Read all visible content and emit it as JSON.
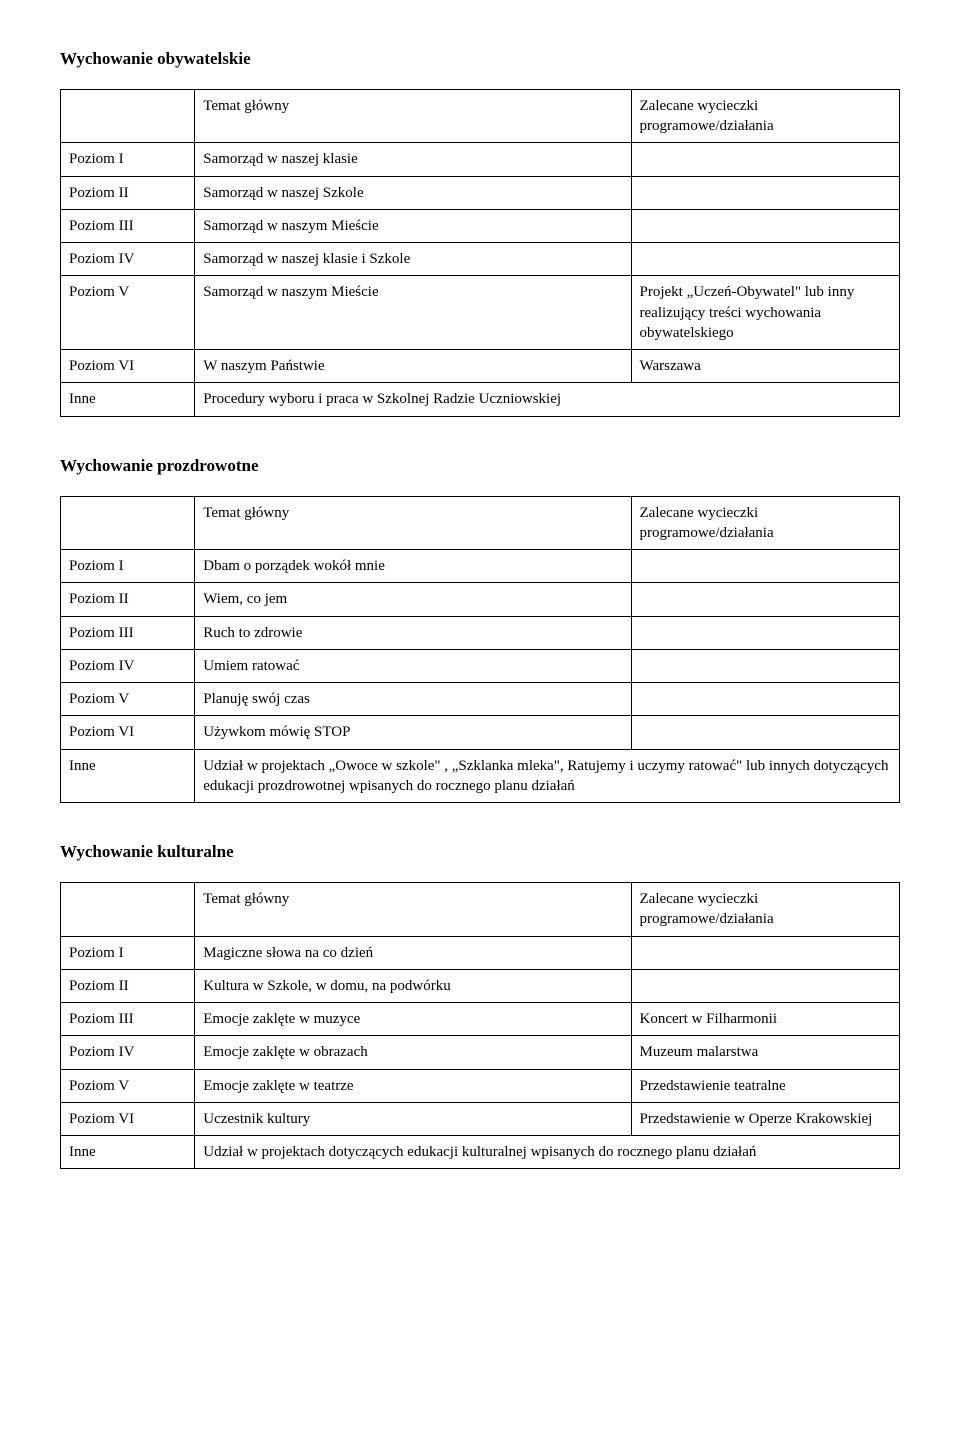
{
  "sections": [
    {
      "title": "Wychowanie obywatelskie",
      "header": {
        "col2": "Temat główny",
        "col3": "Zalecane wycieczki programowe/działania"
      },
      "rows": [
        {
          "c1": "Poziom I",
          "c2": "Samorząd w naszej klasie",
          "c3": ""
        },
        {
          "c1": "Poziom II",
          "c2": "Samorząd w naszej Szkole",
          "c3": ""
        },
        {
          "c1": "Poziom III",
          "c2": "Samorząd w naszym Mieście",
          "c3": ""
        },
        {
          "c1": "Poziom IV",
          "c2": "Samorząd w naszej klasie i Szkole",
          "c3": ""
        },
        {
          "c1": "Poziom V",
          "c2": "Samorząd w naszym Mieście",
          "c3": "Projekt „Uczeń-Obywatel\" lub inny realizujący treści wychowania obywatelskiego"
        },
        {
          "c1": "Poziom VI",
          "c2": "W naszym Państwie",
          "c3": "Warszawa"
        }
      ],
      "inne_label": "Inne",
      "inne_text": "Procedury wyboru i praca w Szkolnej Radzie Uczniowskiej"
    },
    {
      "title": "Wychowanie prozdrowotne",
      "header": {
        "col2": "Temat główny",
        "col3": "Zalecane wycieczki programowe/działania"
      },
      "rows": [
        {
          "c1": "Poziom I",
          "c2": "Dbam o porządek wokół mnie",
          "c3": ""
        },
        {
          "c1": "Poziom II",
          "c2": "Wiem, co jem",
          "c3": ""
        },
        {
          "c1": "Poziom III",
          "c2": "Ruch to zdrowie",
          "c3": ""
        },
        {
          "c1": "Poziom IV",
          "c2": "Umiem ratować",
          "c3": ""
        },
        {
          "c1": "Poziom V",
          "c2": "Planuję swój czas",
          "c3": ""
        },
        {
          "c1": "Poziom VI",
          "c2": "Używkom mówię STOP",
          "c3": ""
        }
      ],
      "inne_label": "Inne",
      "inne_text": "Udział w projektach „Owoce w szkole\" , „Szklanka mleka\", Ratujemy i uczymy ratować\" lub innych dotyczących edukacji prozdrowotnej wpisanych do rocznego planu działań"
    },
    {
      "title": "Wychowanie kulturalne",
      "header": {
        "col2": "Temat główny",
        "col3": "Zalecane wycieczki programowe/działania"
      },
      "rows": [
        {
          "c1": "Poziom I",
          "c2": "Magiczne słowa na co dzień",
          "c3": ""
        },
        {
          "c1": "Poziom II",
          "c2": "Kultura w Szkole, w domu, na podwórku",
          "c3": ""
        },
        {
          "c1": "Poziom III",
          "c2": "Emocje zaklęte w muzyce",
          "c3": "Koncert w Filharmonii"
        },
        {
          "c1": "Poziom IV",
          "c2": "Emocje zaklęte w obrazach",
          "c3": "Muzeum malarstwa"
        },
        {
          "c1": "Poziom V",
          "c2": "Emocje zaklęte w teatrze",
          "c3": "Przedstawienie teatralne"
        },
        {
          "c1": "Poziom VI",
          "c2": "Uczestnik kultury",
          "c3": "Przedstawienie w Operze Krakowskiej"
        }
      ],
      "inne_label": "Inne",
      "inne_text": "Udział w projektach dotyczących edukacji kulturalnej wpisanych do rocznego planu działań"
    }
  ]
}
